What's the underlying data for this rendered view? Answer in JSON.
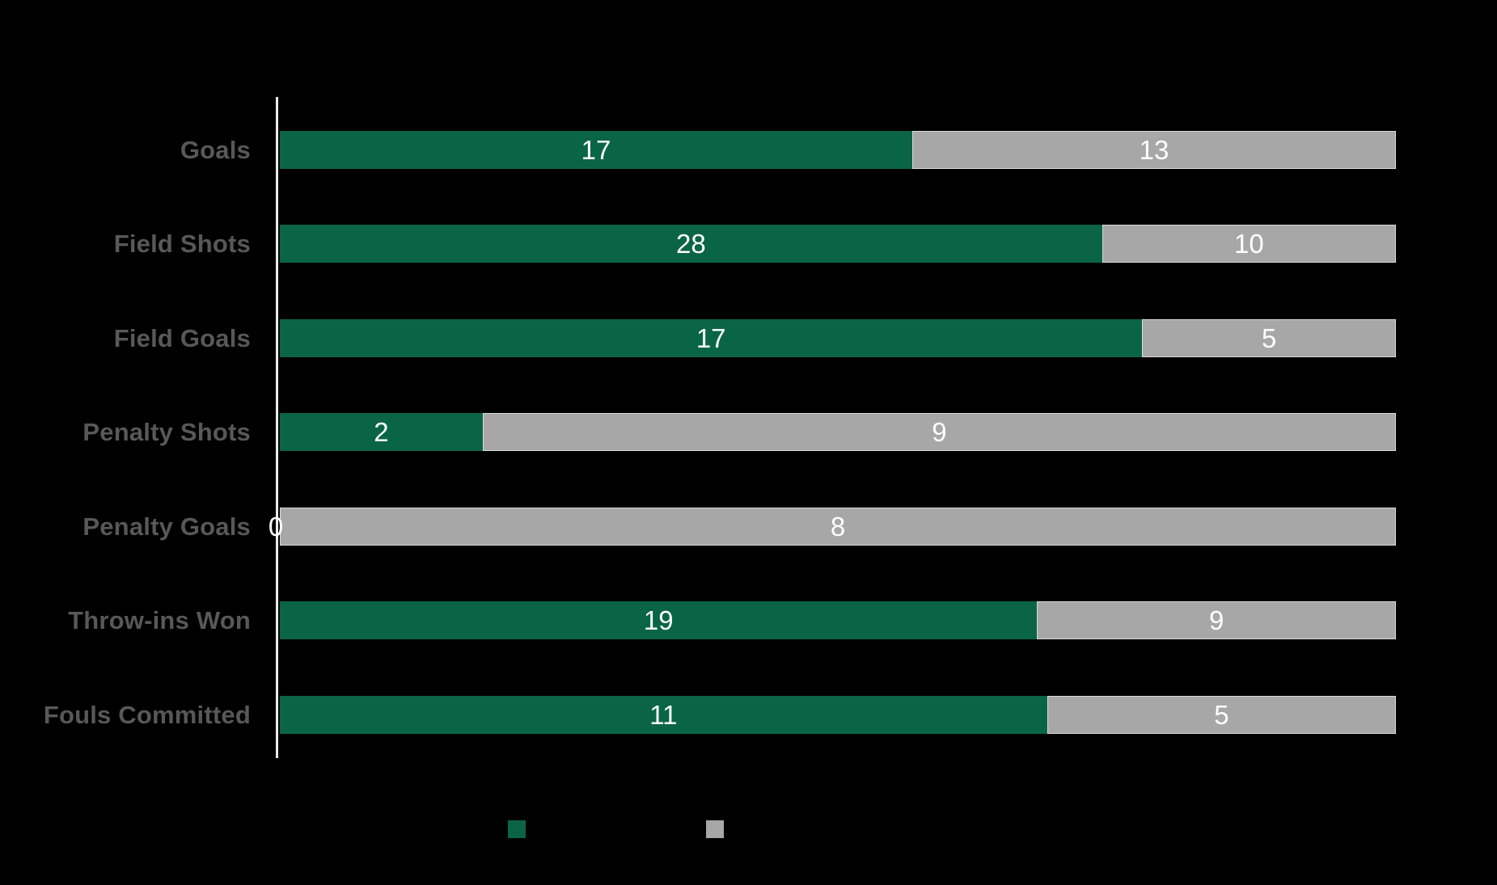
{
  "colors": {
    "background": "#000000",
    "axis": "#ebebeb",
    "category_label": "#585858",
    "value_label": "#ffffff",
    "series_green": "#0a6547",
    "series_grey": "#a7a7a7"
  },
  "chart_data": {
    "type": "bar",
    "subtype": "horizontal-100pct-stacked",
    "title": "",
    "xlabel": "",
    "ylabel": "",
    "grid": false,
    "legend_position": "bottom",
    "categories": [
      "Goals",
      "Field Shots",
      "Field Goals",
      "Penalty Shots",
      "Penalty Goals",
      "Throw-ins Won",
      "Fouls Committed"
    ],
    "series": [
      {
        "id": "green-team",
        "color": "#0a6547",
        "values": [
          17,
          28,
          17,
          2,
          0,
          19,
          11
        ]
      },
      {
        "id": "grey-team",
        "color": "#a7a7a7",
        "values": [
          13,
          10,
          5,
          9,
          8,
          9,
          5
        ]
      }
    ],
    "value_labels_shown": [
      [
        "17",
        "13"
      ],
      [
        "28",
        "10"
      ],
      [
        "17",
        "5"
      ],
      [
        "2",
        "9"
      ],
      [
        "0",
        "8"
      ],
      [
        "19",
        "9"
      ],
      [
        "11",
        "5"
      ]
    ]
  },
  "legend": {
    "items": [
      {
        "id": "green-team",
        "color": "#0a6547",
        "label": ""
      },
      {
        "id": "grey-team",
        "color": "#a7a7a7",
        "label": ""
      }
    ]
  }
}
